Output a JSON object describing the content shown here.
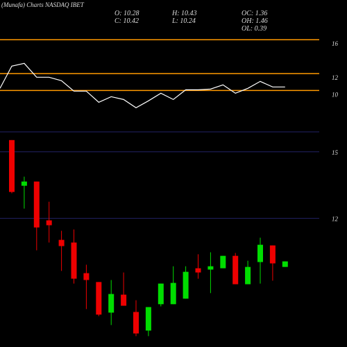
{
  "header": {
    "title": "(Munafa) Charts NASDAQ IBET",
    "info": [
      "O: 10.28",
      "H: 10.43",
      "OC: 1.36",
      "C: 10.42",
      "L: 10.24",
      "OH: 1.46",
      "OL: 0.39"
    ]
  },
  "chart_data": [
    {
      "type": "line",
      "color": "#ffffff",
      "level_color": "#ff9900",
      "values": [
        10.25,
        12.88,
        13.2,
        11.56,
        11.56,
        11.15,
        9.92,
        9.92,
        8.6,
        9.26,
        8.93,
        7.95,
        8.77,
        9.67,
        8.93,
        10.08,
        10.08,
        10.16,
        10.66,
        9.67,
        10.25,
        11.07,
        10.41,
        10.41
      ],
      "ylim": [
        5.1,
        20.7
      ],
      "yticks": [
        16,
        12,
        10
      ]
    },
    {
      "type": "candlestick",
      "up_color": "#00dd00",
      "down_color": "#ee0000",
      "grid_color": "#222266",
      "open": [
        15.53,
        13.47,
        13.66,
        11.91,
        11.03,
        10.91,
        9.53,
        9.13,
        7.75,
        8.56,
        7.78,
        6.94,
        8.13,
        8.13,
        8.38,
        9.75,
        9.69,
        9.75,
        10.31,
        9.03,
        10.03,
        10.78,
        9.81
      ],
      "high": [
        15.53,
        13.88,
        13.66,
        12.75,
        11.44,
        11.5,
        9.91,
        9.13,
        9.22,
        9.56,
        8.31,
        8.0,
        9.06,
        9.84,
        9.84,
        10.38,
        10.47,
        10.31,
        10.44,
        10.09,
        11.13,
        10.78,
        10.06
      ],
      "low": [
        13.13,
        12.44,
        10.56,
        10.91,
        9.63,
        9.06,
        7.91,
        7.59,
        7.19,
        8.06,
        6.69,
        6.69,
        8.03,
        8.13,
        8.38,
        9.28,
        8.63,
        9.75,
        9.03,
        9.03,
        9.06,
        9.19,
        9.81
      ],
      "close": [
        13.19,
        13.66,
        11.59,
        11.69,
        10.75,
        9.28,
        9.22,
        7.66,
        8.59,
        8.06,
        6.81,
        8.0,
        9.06,
        9.09,
        9.59,
        9.56,
        9.84,
        10.31,
        9.03,
        9.81,
        10.81,
        9.97,
        10.06
      ],
      "ylim": [
        6.2,
        15.9
      ],
      "yticks": [
        15,
        12
      ]
    }
  ]
}
